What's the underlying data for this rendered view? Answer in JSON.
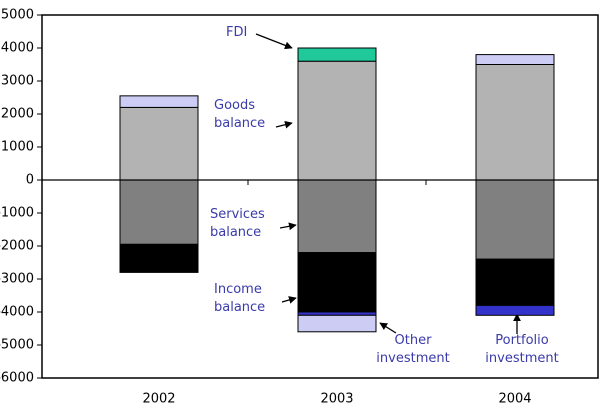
{
  "chart_data": {
    "type": "bar",
    "stacked": true,
    "categories": [
      "2002",
      "2003",
      "2004"
    ],
    "series": [
      {
        "name": "Goods balance",
        "color": "#b3b3b3",
        "values": [
          2200,
          3600,
          3500
        ]
      },
      {
        "name": "Services balance",
        "color": "#808080",
        "values": [
          -1950,
          -2200,
          -2400
        ]
      },
      {
        "name": "Income balance",
        "color": "#000000",
        "values": [
          -850,
          -1800,
          -1400
        ]
      },
      {
        "name": "FDI",
        "color": "#1fc99a",
        "values": [
          0,
          400,
          0
        ]
      },
      {
        "name": "Portfolio investment",
        "color": "#3333cc",
        "values": [
          0,
          -100,
          -300
        ]
      },
      {
        "name": "Other investment",
        "color": "#ccccf5",
        "values": [
          350,
          -500,
          300
        ]
      }
    ],
    "ylim": [
      -6000,
      5000
    ],
    "yticks": [
      -6000,
      -5000,
      -4000,
      -3000,
      -2000,
      -1000,
      0,
      1000,
      2000,
      3000,
      4000,
      5000
    ]
  }
}
